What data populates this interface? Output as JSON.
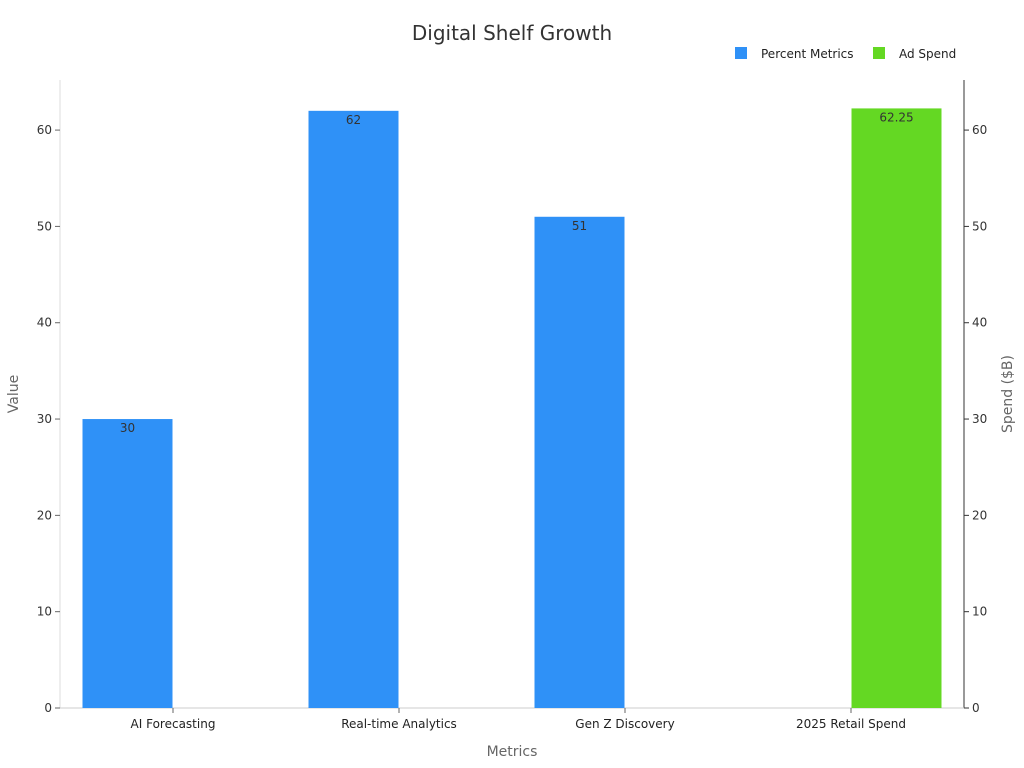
{
  "chart_data": {
    "type": "bar",
    "title": "Digital Shelf Growth",
    "xlabel": "Metrics",
    "ylabel": "Value",
    "y2label": "Spend ($B)",
    "categories": [
      "AI Forecasting",
      "Real-time Analytics",
      "Gen Z Discovery",
      "2025 Retail Spend"
    ],
    "series": [
      {
        "name": "Percent Metrics",
        "axis": "left",
        "color": "#2f91f7",
        "values": [
          30,
          62,
          51,
          null
        ]
      },
      {
        "name": "Ad Spend",
        "axis": "right",
        "color": "#64d823",
        "values": [
          null,
          null,
          null,
          62.25
        ]
      }
    ],
    "data_labels": [
      "30",
      "62",
      "51",
      "62.25"
    ],
    "ylim": [
      0,
      65.2
    ],
    "y2lim": [
      0,
      65.2
    ],
    "yticks": [
      0,
      10,
      20,
      30,
      40,
      50,
      60
    ],
    "y2ticks": [
      0,
      10,
      20,
      30,
      40,
      50,
      60
    ],
    "legend_position": "top-right",
    "grid": false
  }
}
